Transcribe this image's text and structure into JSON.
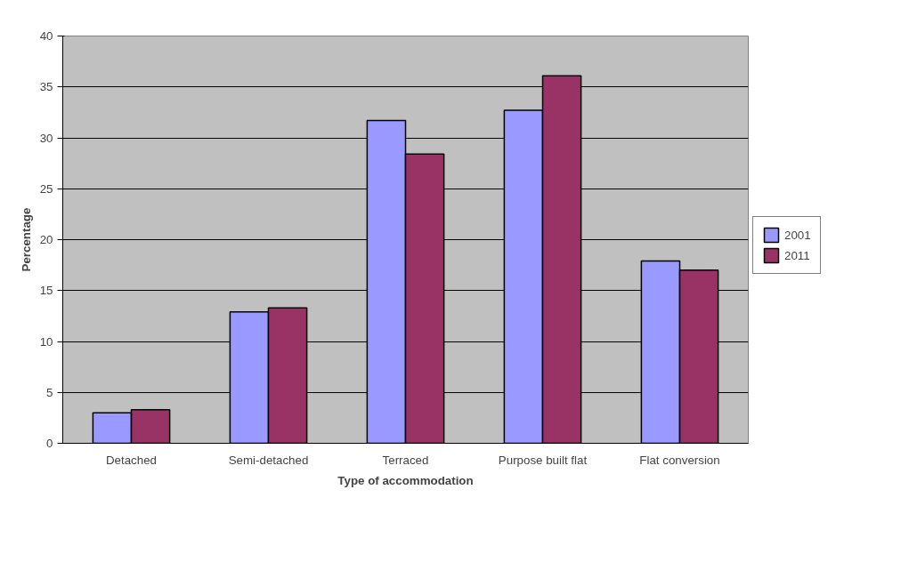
{
  "chart_data": {
    "type": "bar",
    "xlabel": "Type of accommodation",
    "ylabel": "Percentage",
    "categories": [
      "Detached",
      "Semi-detached",
      "Terraced",
      "Purpose built flat",
      "Flat conversion"
    ],
    "series": [
      {
        "name": "2001",
        "color": "#9999ff",
        "values": [
          3.0,
          12.9,
          31.7,
          32.7,
          17.9
        ]
      },
      {
        "name": "2011",
        "color": "#993366",
        "values": [
          3.3,
          13.3,
          28.4,
          36.1,
          17.0
        ]
      }
    ],
    "ylim": [
      0,
      40
    ],
    "yticks": [
      0,
      5,
      10,
      15,
      20,
      25,
      30,
      35,
      40
    ],
    "grid": "y",
    "legend": "right"
  }
}
